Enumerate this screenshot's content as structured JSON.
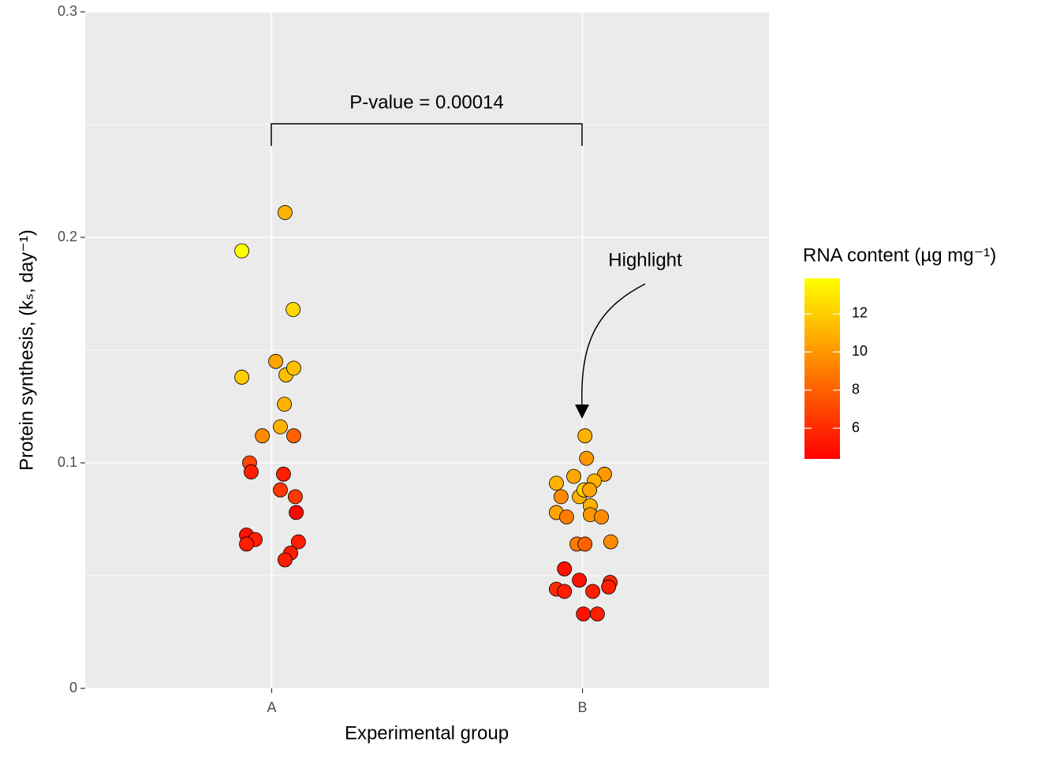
{
  "chart_data": {
    "type": "scatter",
    "y_label": "Protein synthesis, (kₛ, day⁻¹)",
    "x_label": "Experimental group",
    "annotations": [
      "P-value = 0.00014",
      "Highlight"
    ],
    "xlim": [
      0.4,
      2.6
    ],
    "xticks": [
      {
        "value": 1,
        "label": "A"
      },
      {
        "value": 2,
        "label": "B"
      }
    ],
    "ylim": [
      0,
      0.3
    ],
    "yticks": [
      0.0,
      0.1,
      0.2,
      0.3
    ],
    "y_minor_grid": [
      0.05,
      0.15,
      0.25
    ],
    "grid": true,
    "x": [
      1.043,
      0.904,
      1.069,
      0.904,
      1.013,
      1.046,
      1.071,
      1.041,
      1.028,
      0.97,
      1.071,
      0.929,
      0.934,
      1.038,
      1.028,
      1.076,
      1.079,
      0.919,
      0.947,
      0.919,
      1.086,
      1.061,
      1.043,
      2.008,
      2.013,
      1.916,
      1.972,
      2.071,
      1.931,
      1.99,
      2.005,
      2.038,
      2.023,
      2.025,
      2.025,
      2.061,
      1.916,
      1.949,
      1.982,
      2.008,
      2.091,
      1.942,
      1.99,
      1.916,
      1.942,
      2.033,
      2.089,
      2.084,
      2.003,
      2.048
    ],
    "y": [
      0.211,
      0.194,
      0.168,
      0.138,
      0.145,
      0.139,
      0.142,
      0.126,
      0.116,
      0.112,
      0.112,
      0.1,
      0.096,
      0.095,
      0.088,
      0.085,
      0.078,
      0.068,
      0.066,
      0.064,
      0.065,
      0.06,
      0.057,
      0.112,
      0.102,
      0.091,
      0.094,
      0.095,
      0.085,
      0.085,
      0.088,
      0.092,
      0.088,
      0.081,
      0.077,
      0.076,
      0.078,
      0.076,
      0.064,
      0.064,
      0.065,
      0.053,
      0.048,
      0.044,
      0.043,
      0.043,
      0.047,
      0.045,
      0.033,
      0.033
    ],
    "fill_values": [
      11,
      14,
      12.5,
      12,
      10.5,
      11.5,
      11.5,
      11,
      11,
      9.5,
      8,
      7,
      5.5,
      5.5,
      6.5,
      6.5,
      4.5,
      5,
      5.5,
      5.5,
      5.5,
      5.5,
      5.5,
      11,
      10,
      11,
      10.5,
      10,
      9.5,
      11,
      12,
      11,
      10.5,
      11,
      10,
      9.5,
      10.5,
      9,
      9,
      8,
      9.5,
      5,
      5,
      6,
      5.5,
      5.5,
      6,
      5.5,
      5,
      5.5
    ],
    "colorbar": {
      "title": "RNA content (µg mg⁻¹)",
      "lim": [
        4.39,
        13.86
      ],
      "ticks": [
        6,
        8,
        10,
        12
      ],
      "colors": [
        "#FF0000",
        "#FFFF00"
      ]
    }
  }
}
